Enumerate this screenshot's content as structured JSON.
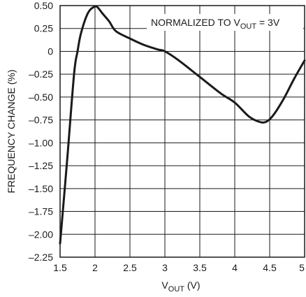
{
  "chart_data": {
    "type": "line",
    "title": "",
    "xlabel": {
      "main": "V",
      "sub": "OUT",
      "suffix": " (V)"
    },
    "ylabel": "FREQUENCY CHANGE (%)",
    "xlim": [
      1.5,
      5
    ],
    "ylim": [
      -2.25,
      0.5
    ],
    "grid": true,
    "x_ticks": [
      1.5,
      2,
      2.5,
      3,
      3.5,
      4,
      4.5,
      5
    ],
    "x_tick_labels": [
      "1.5",
      "2",
      "2.5",
      "3",
      "3.5",
      "4",
      "4.5",
      "5"
    ],
    "y_ticks": [
      0.5,
      0.25,
      0,
      -0.25,
      -0.5,
      -0.75,
      -1,
      -1.25,
      -1.5,
      -1.75,
      -2,
      -2.25
    ],
    "y_tick_labels": [
      "0.50",
      "0.25",
      "0",
      "–0.25",
      "–0.50",
      "–0.75",
      "–1.00",
      "–1.25",
      "–1.50",
      "–1.75",
      "–2.00",
      "–2.25"
    ],
    "annotation": {
      "main": "NORMALIZED TO V",
      "sub": "OUT",
      "suffix": " = 3V"
    },
    "series": [
      {
        "color": "#1a1a1a",
        "x": [
          1.5,
          1.6,
          1.7,
          1.75,
          1.8,
          1.9,
          2.0,
          2.05,
          2.1,
          2.2,
          2.3,
          2.5,
          2.7,
          2.9,
          3.0,
          3.2,
          3.5,
          3.8,
          4.0,
          4.2,
          4.35,
          4.45,
          4.55,
          4.7,
          4.85,
          5.0
        ],
        "y": [
          -2.1,
          -1.2,
          -0.25,
          0.0,
          0.2,
          0.42,
          0.49,
          0.47,
          0.42,
          0.33,
          0.22,
          0.14,
          0.07,
          0.02,
          0.0,
          -0.1,
          -0.28,
          -0.46,
          -0.56,
          -0.71,
          -0.77,
          -0.77,
          -0.7,
          -0.52,
          -0.3,
          -0.1
        ]
      }
    ]
  }
}
